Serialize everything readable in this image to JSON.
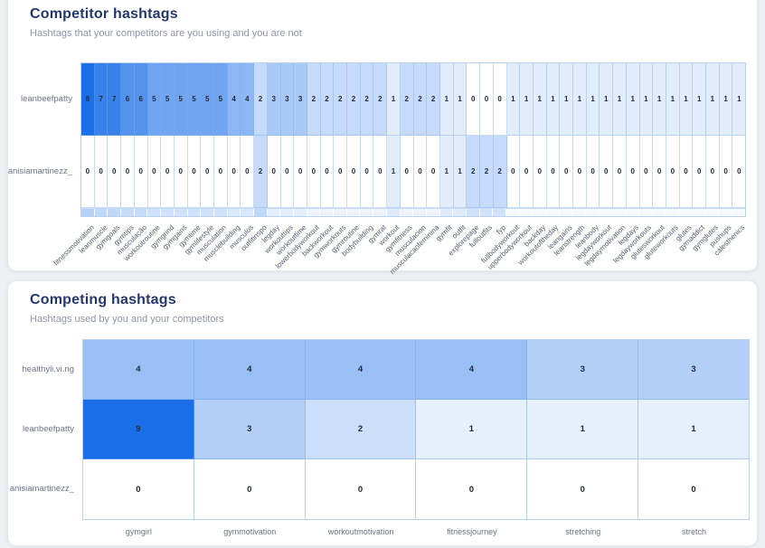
{
  "page": {
    "background_color": "#edeff3",
    "accent_color": "#1a6fe8",
    "title_color": "#24386e"
  },
  "chart_data": [
    {
      "type": "heatmap",
      "title": "Competitor hashtags",
      "subtitle": "Hashtags that your competitors are you using and you are not",
      "x_categories": [
        "fitnessmotivation",
        "leanmuscle",
        "gymgoals",
        "gymtips",
        "musculação",
        "workoutroutine",
        "gymgrind",
        "gymgains",
        "gymtime",
        "gymlifestyle",
        "musculation",
        "musclebuilding",
        "musculos",
        "outfitinspo",
        "legday",
        "workouttips",
        "workouttime",
        "lowerbodyworkout",
        "backworkout",
        "gymworkouts",
        "gymroutine",
        "bodybuilding",
        "gymrat",
        "workout",
        "gymfitness",
        "musculacion",
        "musculacaofeminina",
        "gymfit",
        "outfit",
        "explorepage",
        "fulloutfits",
        "fyp",
        "fullbodyworkout",
        "upperbodyworkout",
        "backday",
        "workoutoftheday",
        "leangains",
        "leanstrength",
        "leanbody",
        "legdayworkout",
        "legdaymotivation",
        "legdays",
        "legdayworkouts",
        "glutesworkout",
        "gluteworkouts",
        "glutes",
        "gymaddict",
        "gymglutes",
        "pushups",
        "calesthenics"
      ],
      "y_categories": [
        "leanbeefpatty",
        "anisiamartinezz_"
      ],
      "series": [
        {
          "name": "leanbeefpatty",
          "values": [
            8,
            7,
            7,
            6,
            6,
            5,
            5,
            5,
            5,
            5,
            5,
            4,
            4,
            2,
            3,
            3,
            3,
            2,
            2,
            2,
            2,
            2,
            2,
            1,
            2,
            2,
            2,
            1,
            1,
            0,
            0,
            0,
            1,
            1,
            1,
            1,
            1,
            1,
            1,
            1,
            1,
            1,
            1,
            1,
            1,
            1,
            1,
            1,
            1,
            1
          ]
        },
        {
          "name": "anisiamartinezz_",
          "values": [
            0,
            0,
            0,
            0,
            0,
            0,
            0,
            0,
            0,
            0,
            0,
            0,
            0,
            2,
            0,
            0,
            0,
            0,
            0,
            0,
            0,
            0,
            0,
            1,
            0,
            0,
            0,
            1,
            1,
            2,
            2,
            2,
            0,
            0,
            0,
            0,
            0,
            0,
            0,
            0,
            0,
            0,
            0,
            0,
            0,
            0,
            0,
            0,
            0,
            0
          ]
        }
      ],
      "value_range": [
        0,
        8
      ],
      "colors": {
        "low": "#ffffff",
        "high": "#1a6fe8",
        "cell_border": "#bcd6f2"
      },
      "x_label_rotation": 45,
      "legend": "none",
      "grid": "cell borders only"
    },
    {
      "type": "heatmap",
      "title": "Competing hashtags",
      "subtitle": "Hashtags used by you and your competitors",
      "x_categories": [
        "gymgirl",
        "gymmotivation",
        "workoutmotivation",
        "fitnessjourney",
        "stretching",
        "stretch"
      ],
      "y_categories": [
        "healthyli.vi.ng",
        "leanbeefpatty",
        "anisiamartinezz_"
      ],
      "series": [
        {
          "name": "healthyli.vi.ng",
          "values": [
            4,
            4,
            4,
            4,
            3,
            3
          ]
        },
        {
          "name": "leanbeefpatty",
          "values": [
            9,
            3,
            2,
            1,
            1,
            1
          ]
        },
        {
          "name": "anisiamartinezz_",
          "values": [
            0,
            0,
            0,
            0,
            0,
            0
          ]
        }
      ],
      "value_range": [
        0,
        9
      ],
      "colors": {
        "low": "#ffffff",
        "high": "#1a6fe8",
        "cell_border": "#aacdf2"
      },
      "x_label_rotation": 0,
      "legend": "none",
      "grid": "cell borders only"
    }
  ]
}
